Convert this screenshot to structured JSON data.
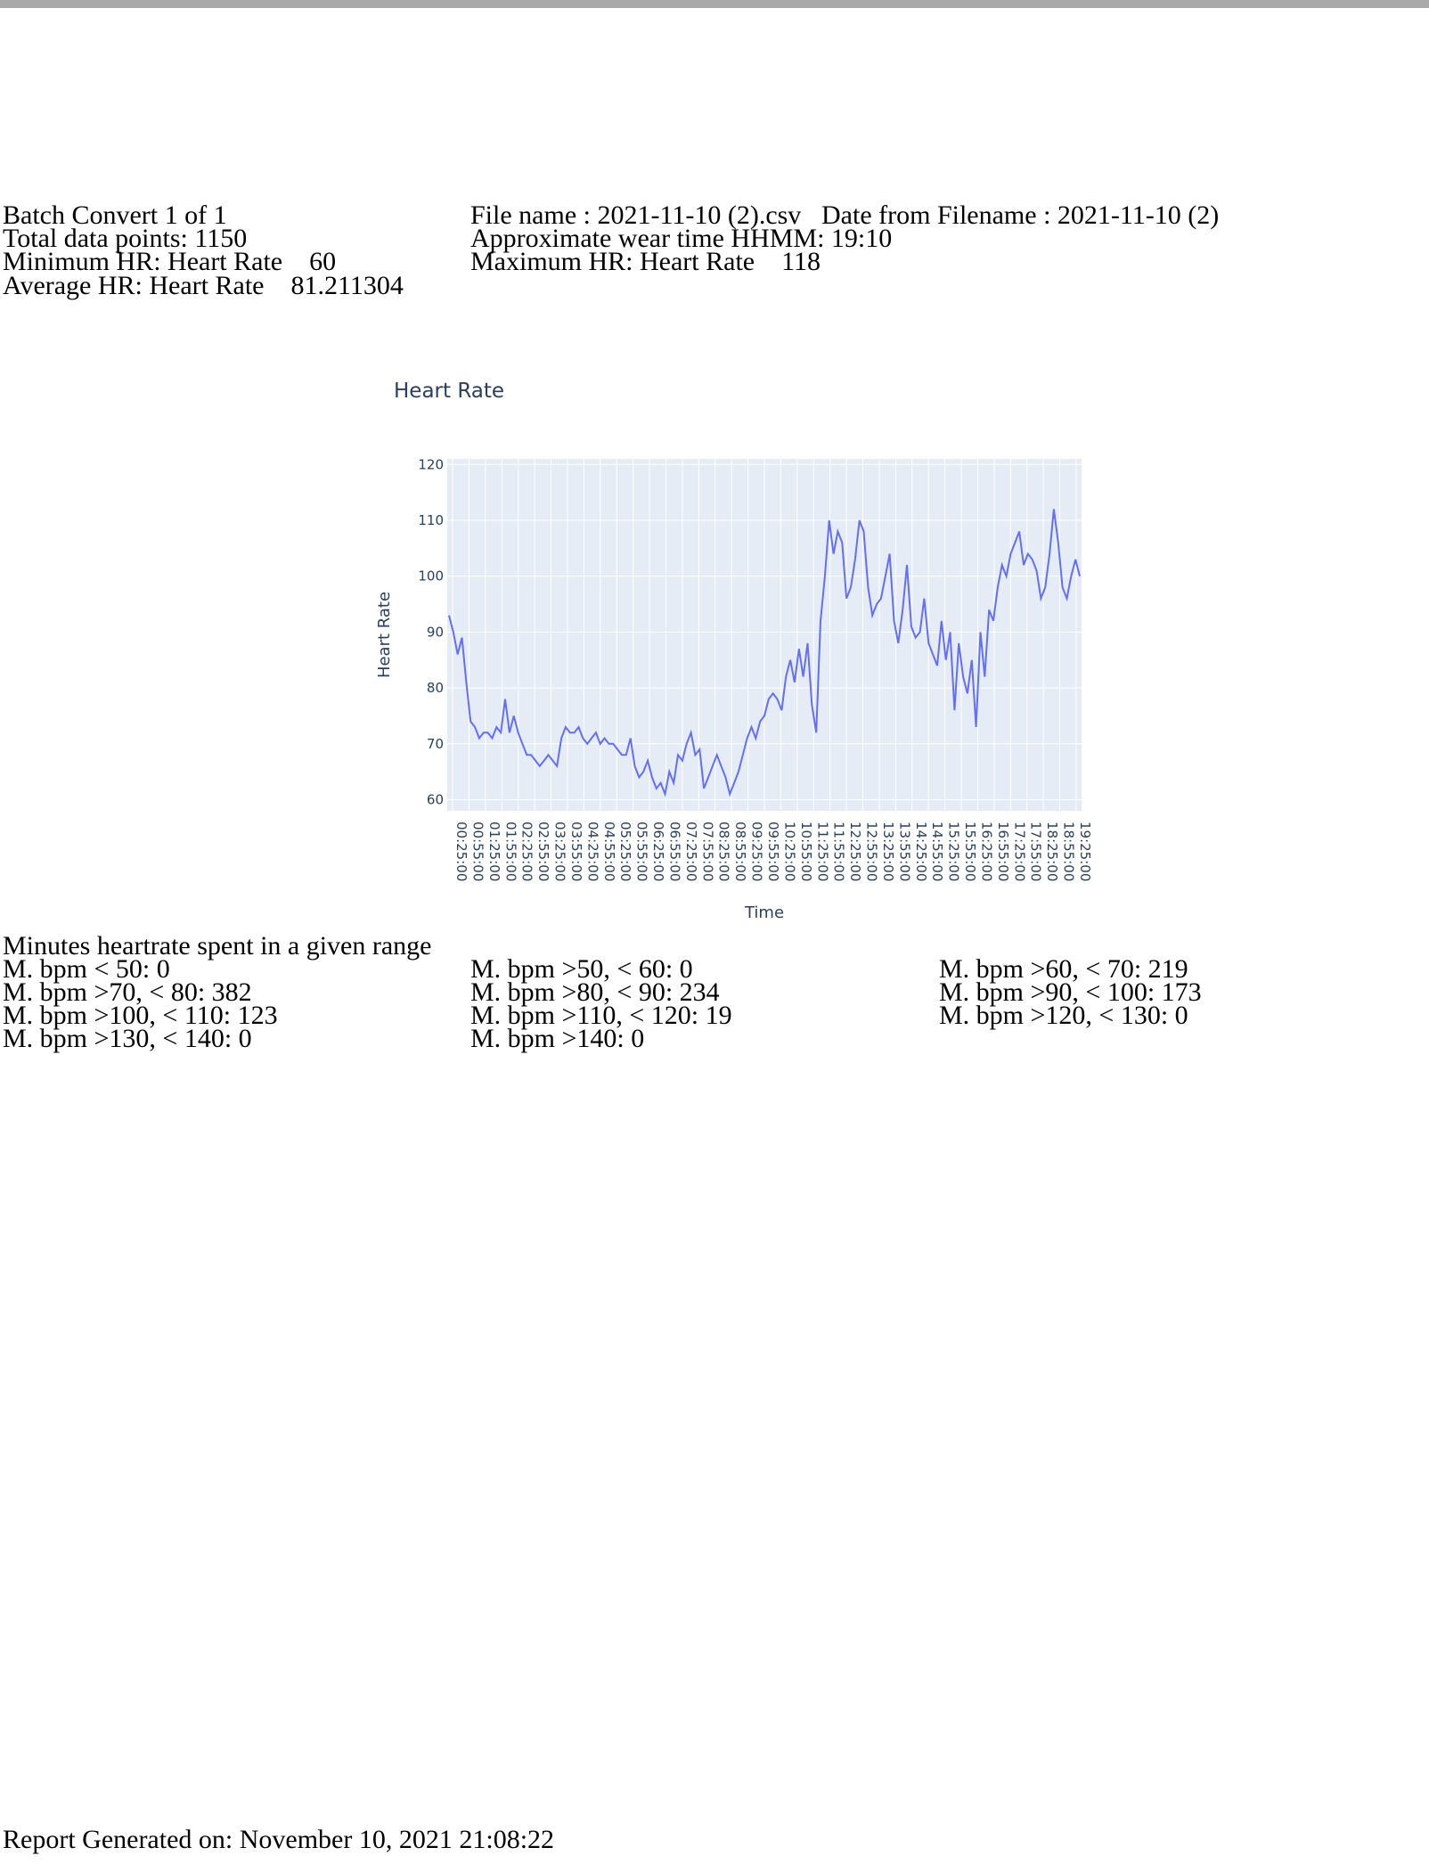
{
  "header": {
    "batch": "Batch Convert 1 of 1",
    "total_points": "Total data points: 1150",
    "min_hr": "Minimum HR: Heart Rate    60",
    "avg_hr": "Average HR: Heart Rate    81.211304",
    "file_name": "File name : 2021-11-10 (2).csv",
    "date_from_filename": "Date from Filename : 2021-11-10 (2)",
    "wear_time": "Approximate wear time HHMM: 19:10",
    "max_hr": "Maximum HR: Heart Rate    118"
  },
  "chart_data": {
    "type": "line",
    "title": "Heart Rate",
    "xlabel": "Time",
    "ylabel": "Heart Rate",
    "ylim": [
      58,
      121
    ],
    "yticks": [
      60,
      70,
      80,
      90,
      100,
      110,
      120
    ],
    "grid": true,
    "x_tick_labels": [
      "00:25:00",
      "00:55:00",
      "01:25:00",
      "01:55:00",
      "02:25:00",
      "02:55:00",
      "03:25:00",
      "03:55:00",
      "04:25:00",
      "04:55:00",
      "05:25:00",
      "05:55:00",
      "06:25:00",
      "06:55:00",
      "07:25:00",
      "07:55:00",
      "08:25:00",
      "08:55:00",
      "09:25:00",
      "09:55:00",
      "10:25:00",
      "10:55:00",
      "11:25:00",
      "11:55:00",
      "12:25:00",
      "12:55:00",
      "13:25:00",
      "13:55:00",
      "14:25:00",
      "14:55:00",
      "15:25:00",
      "15:55:00",
      "16:25:00",
      "16:55:00",
      "17:25:00",
      "17:55:00",
      "18:25:00",
      "18:55:00",
      "19:25:00"
    ],
    "line_color": "#636efa",
    "series": [
      {
        "values": [
          93,
          90,
          86,
          89,
          81,
          74,
          73,
          71,
          72,
          72,
          71,
          73,
          72,
          78,
          72,
          75,
          72,
          70,
          68,
          68,
          67,
          66,
          67,
          68,
          67,
          66,
          71,
          73,
          72,
          72,
          73,
          71,
          70,
          71,
          72,
          70,
          71,
          70,
          70,
          69,
          68,
          68,
          71,
          66,
          64,
          65,
          67,
          64,
          62,
          63,
          61,
          65,
          63,
          68,
          67,
          70,
          72,
          68,
          69,
          62,
          64,
          66,
          68,
          66,
          64,
          61,
          63,
          65,
          68,
          71,
          73,
          71,
          74,
          75,
          78,
          79,
          78,
          76,
          82,
          85,
          81,
          87,
          82,
          88,
          77,
          72,
          92,
          100,
          110,
          104,
          108,
          106,
          96,
          98,
          103,
          110,
          108,
          98,
          93,
          95,
          96,
          100,
          104,
          92,
          88,
          94,
          102,
          91,
          89,
          90,
          96,
          88,
          86,
          84,
          92,
          85,
          90,
          76,
          88,
          82,
          79,
          85,
          73,
          90,
          82,
          94,
          92,
          98,
          102,
          100,
          104,
          106,
          108,
          102,
          104,
          103,
          101,
          96,
          98,
          104,
          112,
          106,
          98,
          96,
          100,
          103,
          100
        ]
      }
    ]
  },
  "ranges": {
    "heading": "Minutes heartrate spent in a given range",
    "col1": [
      "M. bpm < 50: 0",
      "M. bpm >70, < 80: 382",
      "M. bpm >100, < 110: 123",
      "M. bpm >130, < 140: 0"
    ],
    "col2": [
      "M. bpm >50, < 60: 0",
      "M. bpm >80, < 90: 234",
      "M. bpm >110, < 120: 19",
      "M. bpm >140: 0"
    ],
    "col3": [
      "M. bpm >60, < 70: 219",
      "M. bpm >90, < 100: 173",
      "M. bpm >120, < 130: 0"
    ]
  },
  "footer": {
    "generated": "Report Generated on: November 10, 2021 21:08:22"
  }
}
